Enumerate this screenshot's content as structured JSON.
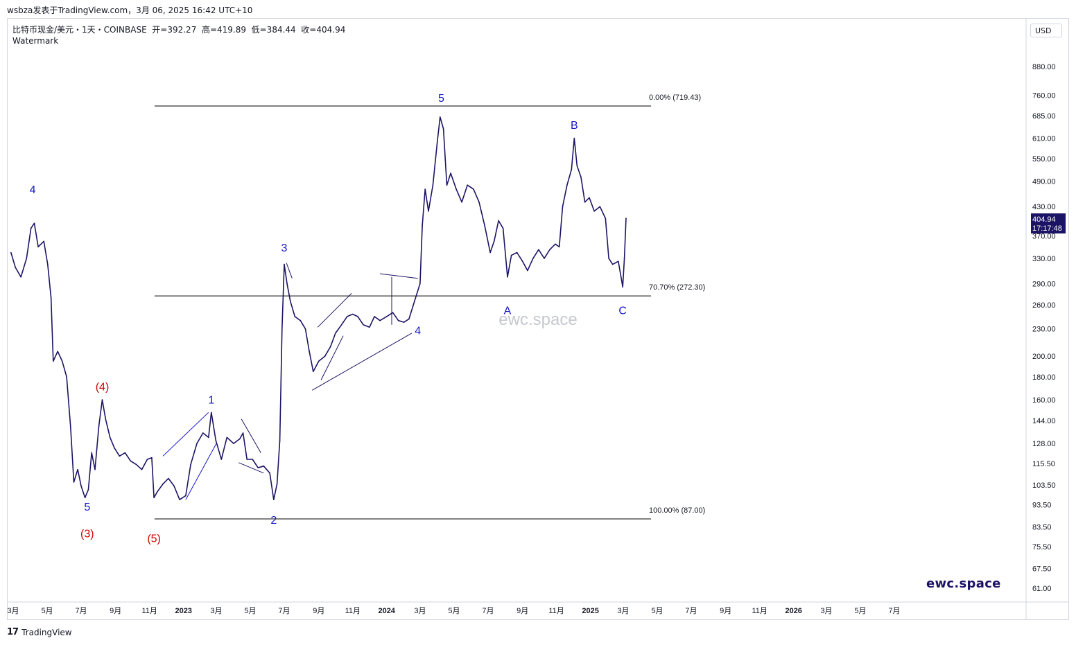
{
  "header": {
    "published": "wsbza发表于TradingView.com，3月 06, 2025 16:42 UTC+10",
    "symbol_line": "比特币现金/美元・1天・COINBASE  开=392.27  高=419.89  低=384.44  收=404.94",
    "watermark_label": "Watermark",
    "currency": "USD"
  },
  "price_tag": {
    "price": "404.94",
    "countdown": "17:17:48",
    "color": "#1b1464"
  },
  "watermark_text": "ewc.space",
  "brand": "ewc.space",
  "footer": {
    "logo_mark": "17",
    "logo_text": "TradingView"
  },
  "colors": {
    "series": "#1b1464",
    "wave_blue": "#1515c8",
    "wave_red": "#d40000",
    "fib": "#000000"
  },
  "chart_data": {
    "type": "line",
    "title": "",
    "scale": "log",
    "xlim": [
      "2022-03",
      "2026-09"
    ],
    "ylim": [
      56,
      1000
    ],
    "y_ticks": [
      {
        "label": "880.00",
        "v": 880
      },
      {
        "label": "760.00",
        "v": 760
      },
      {
        "label": "685.00",
        "v": 685
      },
      {
        "label": "610.00",
        "v": 610
      },
      {
        "label": "550.00",
        "v": 550
      },
      {
        "label": "490.00",
        "v": 490
      },
      {
        "label": "430.00",
        "v": 430
      },
      {
        "label": "370.00",
        "v": 370
      },
      {
        "label": "330.00",
        "v": 330
      },
      {
        "label": "290.00",
        "v": 290
      },
      {
        "label": "260.00",
        "v": 260
      },
      {
        "label": "230.00",
        "v": 230
      },
      {
        "label": "200.00",
        "v": 200
      },
      {
        "label": "180.00",
        "v": 180
      },
      {
        "label": "160.00",
        "v": 160
      },
      {
        "label": "144.00",
        "v": 144
      },
      {
        "label": "128.00",
        "v": 128
      },
      {
        "label": "115.50",
        "v": 115.5
      },
      {
        "label": "103.50",
        "v": 103.5
      },
      {
        "label": "93.50",
        "v": 93.5
      },
      {
        "label": "83.50",
        "v": 83.5
      },
      {
        "label": "75.50",
        "v": 75.5
      },
      {
        "label": "67.50",
        "v": 67.5
      },
      {
        "label": "61.00",
        "v": 61
      }
    ],
    "x_ticks": [
      {
        "label": "3月",
        "t": "2022-03"
      },
      {
        "label": "5月",
        "t": "2022-05"
      },
      {
        "label": "7月",
        "t": "2022-07"
      },
      {
        "label": "9月",
        "t": "2022-09"
      },
      {
        "label": "11月",
        "t": "2022-11"
      },
      {
        "label": "2023",
        "t": "2023-01",
        "bold": true
      },
      {
        "label": "3月",
        "t": "2023-03"
      },
      {
        "label": "5月",
        "t": "2023-05"
      },
      {
        "label": "7月",
        "t": "2023-07"
      },
      {
        "label": "9月",
        "t": "2023-09"
      },
      {
        "label": "11月",
        "t": "2023-11"
      },
      {
        "label": "2024",
        "t": "2024-01",
        "bold": true
      },
      {
        "label": "3月",
        "t": "2024-03"
      },
      {
        "label": "5月",
        "t": "2024-05"
      },
      {
        "label": "7月",
        "t": "2024-07"
      },
      {
        "label": "9月",
        "t": "2024-09"
      },
      {
        "label": "11月",
        "t": "2024-11"
      },
      {
        "label": "2025",
        "t": "2025-01",
        "bold": true
      },
      {
        "label": "3月",
        "t": "2025-03"
      },
      {
        "label": "5月",
        "t": "2025-05"
      },
      {
        "label": "7月",
        "t": "2025-07"
      },
      {
        "label": "9月",
        "t": "2025-09"
      },
      {
        "label": "11月",
        "t": "2025-11"
      },
      {
        "label": "2026",
        "t": "2026-01",
        "bold": true
      },
      {
        "label": "3月",
        "t": "2026-03"
      },
      {
        "label": "5月",
        "t": "2026-05"
      },
      {
        "label": "7月",
        "t": "2026-07"
      }
    ],
    "series": [
      {
        "values": [
          [
            "2022-02-25",
            340
          ],
          [
            "2022-03-05",
            315
          ],
          [
            "2022-03-15",
            300
          ],
          [
            "2022-03-25",
            330
          ],
          [
            "2022-04-02",
            385
          ],
          [
            "2022-04-08",
            395
          ],
          [
            "2022-04-15",
            350
          ],
          [
            "2022-04-25",
            360
          ],
          [
            "2022-05-02",
            320
          ],
          [
            "2022-05-08",
            270
          ],
          [
            "2022-05-12",
            195
          ],
          [
            "2022-05-20",
            205
          ],
          [
            "2022-05-28",
            195
          ],
          [
            "2022-06-05",
            180
          ],
          [
            "2022-06-12",
            140
          ],
          [
            "2022-06-18",
            105
          ],
          [
            "2022-06-25",
            112
          ],
          [
            "2022-07-01",
            103
          ],
          [
            "2022-07-08",
            97
          ],
          [
            "2022-07-14",
            101
          ],
          [
            "2022-07-20",
            122
          ],
          [
            "2022-07-26",
            112
          ],
          [
            "2022-08-02",
            140
          ],
          [
            "2022-08-08",
            160
          ],
          [
            "2022-08-14",
            145
          ],
          [
            "2022-08-22",
            132
          ],
          [
            "2022-08-30",
            125
          ],
          [
            "2022-09-08",
            120
          ],
          [
            "2022-09-18",
            122
          ],
          [
            "2022-09-28",
            117
          ],
          [
            "2022-10-08",
            115
          ],
          [
            "2022-10-18",
            112
          ],
          [
            "2022-10-28",
            118
          ],
          [
            "2022-11-05",
            119
          ],
          [
            "2022-11-09",
            97
          ],
          [
            "2022-11-15",
            100
          ],
          [
            "2022-11-25",
            104
          ],
          [
            "2022-12-05",
            107
          ],
          [
            "2022-12-15",
            103
          ],
          [
            "2022-12-25",
            96
          ],
          [
            "2023-01-05",
            98
          ],
          [
            "2023-01-14",
            115
          ],
          [
            "2023-01-25",
            128
          ],
          [
            "2023-02-05",
            135
          ],
          [
            "2023-02-15",
            132
          ],
          [
            "2023-02-20",
            150
          ],
          [
            "2023-02-28",
            130
          ],
          [
            "2023-03-10",
            118
          ],
          [
            "2023-03-20",
            132
          ],
          [
            "2023-04-01",
            128
          ],
          [
            "2023-04-12",
            131
          ],
          [
            "2023-04-18",
            135
          ],
          [
            "2023-04-25",
            118
          ],
          [
            "2023-05-05",
            118
          ],
          [
            "2023-05-15",
            113
          ],
          [
            "2023-05-25",
            114
          ],
          [
            "2023-06-05",
            110
          ],
          [
            "2023-06-12",
            96
          ],
          [
            "2023-06-18",
            104
          ],
          [
            "2023-06-23",
            130
          ],
          [
            "2023-06-27",
            230
          ],
          [
            "2023-07-01",
            320
          ],
          [
            "2023-07-06",
            290
          ],
          [
            "2023-07-12",
            265
          ],
          [
            "2023-07-20",
            245
          ],
          [
            "2023-07-30",
            240
          ],
          [
            "2023-08-08",
            230
          ],
          [
            "2023-08-15",
            205
          ],
          [
            "2023-08-22",
            185
          ],
          [
            "2023-09-01",
            195
          ],
          [
            "2023-09-12",
            200
          ],
          [
            "2023-09-22",
            210
          ],
          [
            "2023-10-01",
            225
          ],
          [
            "2023-10-12",
            235
          ],
          [
            "2023-10-22",
            245
          ],
          [
            "2023-11-01",
            248
          ],
          [
            "2023-11-10",
            245
          ],
          [
            "2023-11-20",
            235
          ],
          [
            "2023-12-01",
            232
          ],
          [
            "2023-12-10",
            245
          ],
          [
            "2023-12-20",
            240
          ],
          [
            "2024-01-01",
            245
          ],
          [
            "2024-01-12",
            250
          ],
          [
            "2024-01-22",
            240
          ],
          [
            "2024-02-01",
            238
          ],
          [
            "2024-02-10",
            242
          ],
          [
            "2024-02-20",
            265
          ],
          [
            "2024-03-01",
            290
          ],
          [
            "2024-03-05",
            390
          ],
          [
            "2024-03-10",
            470
          ],
          [
            "2024-03-16",
            420
          ],
          [
            "2024-03-24",
            480
          ],
          [
            "2024-04-01",
            600
          ],
          [
            "2024-04-06",
            680
          ],
          [
            "2024-04-12",
            640
          ],
          [
            "2024-04-18",
            480
          ],
          [
            "2024-04-25",
            510
          ],
          [
            "2024-05-05",
            470
          ],
          [
            "2024-05-15",
            440
          ],
          [
            "2024-05-25",
            480
          ],
          [
            "2024-06-05",
            470
          ],
          [
            "2024-06-15",
            440
          ],
          [
            "2024-06-25",
            390
          ],
          [
            "2024-07-05",
            340
          ],
          [
            "2024-07-12",
            360
          ],
          [
            "2024-07-20",
            400
          ],
          [
            "2024-07-28",
            385
          ],
          [
            "2024-08-05",
            300
          ],
          [
            "2024-08-12",
            335
          ],
          [
            "2024-08-22",
            340
          ],
          [
            "2024-09-01",
            325
          ],
          [
            "2024-09-10",
            310
          ],
          [
            "2024-09-20",
            330
          ],
          [
            "2024-09-30",
            345
          ],
          [
            "2024-10-10",
            330
          ],
          [
            "2024-10-20",
            345
          ],
          [
            "2024-10-30",
            355
          ],
          [
            "2024-11-06",
            350
          ],
          [
            "2024-11-12",
            430
          ],
          [
            "2024-11-20",
            480
          ],
          [
            "2024-11-28",
            520
          ],
          [
            "2024-12-03",
            610
          ],
          [
            "2024-12-08",
            530
          ],
          [
            "2024-12-15",
            500
          ],
          [
            "2024-12-22",
            440
          ],
          [
            "2024-12-30",
            450
          ],
          [
            "2025-01-08",
            420
          ],
          [
            "2025-01-18",
            430
          ],
          [
            "2025-01-28",
            405
          ],
          [
            "2025-02-03",
            330
          ],
          [
            "2025-02-10",
            320
          ],
          [
            "2025-02-20",
            325
          ],
          [
            "2025-02-26",
            295
          ],
          [
            "2025-02-28",
            285
          ],
          [
            "2025-03-03",
            330
          ],
          [
            "2025-03-06",
            404.94
          ]
        ]
      }
    ],
    "fib_levels": [
      {
        "label": "0.00% (719.43)",
        "v": 719.43
      },
      {
        "label": "70.70% (272.30)",
        "v": 272.3
      },
      {
        "label": "100.00% (87.00)",
        "v": 87
      }
    ],
    "fib_range": [
      "2022-11-10",
      "2025-04-20"
    ],
    "annotations": [
      {
        "text": "4",
        "t": "2022-04-05",
        "v": 460,
        "color": "blue",
        "pos": "above"
      },
      {
        "text": "5",
        "t": "2022-07-12",
        "v": 94,
        "color": "blue",
        "pos": "below"
      },
      {
        "text": "(3)",
        "t": "2022-07-12",
        "v": 82,
        "color": "red",
        "pos": "below"
      },
      {
        "text": "(4)",
        "t": "2022-08-08",
        "v": 168,
        "color": "red",
        "pos": "above"
      },
      {
        "text": "(5)",
        "t": "2022-11-09",
        "v": 80,
        "color": "red",
        "pos": "below"
      },
      {
        "text": "1",
        "t": "2023-02-20",
        "v": 157,
        "color": "blue",
        "pos": "above"
      },
      {
        "text": "2",
        "t": "2023-06-12",
        "v": 88,
        "color": "blue",
        "pos": "below"
      },
      {
        "text": "3",
        "t": "2023-07-01",
        "v": 342,
        "color": "blue",
        "pos": "above"
      },
      {
        "text": "4",
        "t": "2024-02-26",
        "v": 232,
        "color": "blue",
        "pos": "below"
      },
      {
        "text": "5",
        "t": "2024-04-08",
        "v": 735,
        "color": "blue",
        "pos": "above"
      },
      {
        "text": "A",
        "t": "2024-08-05",
        "v": 257,
        "color": "blue",
        "pos": "below"
      },
      {
        "text": "B",
        "t": "2024-12-03",
        "v": 640,
        "color": "blue",
        "pos": "above"
      },
      {
        "text": "C",
        "t": "2025-02-28",
        "v": 257,
        "color": "blue",
        "pos": "below"
      }
    ],
    "trendlines": [
      {
        "color": "blue",
        "pts": [
          [
            "2022-11-25",
            120
          ],
          [
            "2023-02-15",
            150
          ]
        ]
      },
      {
        "color": "blue",
        "pts": [
          [
            "2023-01-05",
            96
          ],
          [
            "2023-03-01",
            128
          ]
        ]
      },
      {
        "color": "dark",
        "pts": [
          [
            "2023-04-15",
            145
          ],
          [
            "2023-05-20",
            122
          ]
        ]
      },
      {
        "color": "dark",
        "pts": [
          [
            "2023-04-10",
            116
          ],
          [
            "2023-05-25",
            110
          ]
        ]
      },
      {
        "color": "dark",
        "pts": [
          [
            "2023-07-05",
            322
          ],
          [
            "2023-07-15",
            298
          ]
        ]
      },
      {
        "color": "dark",
        "pts": [
          [
            "2023-08-20",
            168
          ],
          [
            "2024-02-15",
            225
          ]
        ]
      },
      {
        "color": "dark",
        "pts": [
          [
            "2023-08-30",
            232
          ],
          [
            "2023-10-30",
            276
          ]
        ]
      },
      {
        "color": "dark",
        "pts": [
          [
            "2023-09-05",
            177
          ],
          [
            "2023-10-15",
            222
          ]
        ]
      },
      {
        "color": "dark",
        "pts": [
          [
            "2023-12-20",
            305
          ],
          [
            "2024-02-26",
            298
          ]
        ]
      },
      {
        "color": "dark",
        "pts": [
          [
            "2024-01-10",
            300
          ],
          [
            "2024-01-10",
            235
          ]
        ]
      }
    ]
  }
}
